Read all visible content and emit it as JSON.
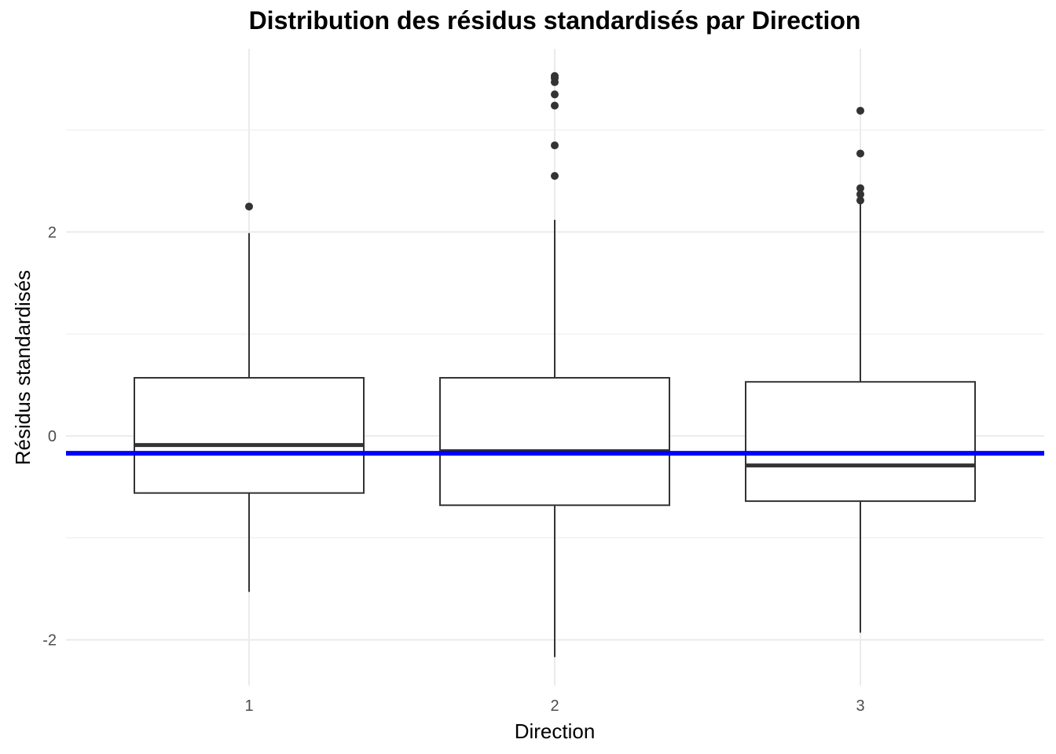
{
  "chart_data": {
    "type": "boxplot",
    "title": "Distribution des résidus standardisés par Direction",
    "xlabel": "Direction",
    "ylabel": "Résidus standardisés",
    "categories": [
      "1",
      "2",
      "3"
    ],
    "yticks": [
      -2,
      0,
      2
    ],
    "ytick_labels": [
      "-2",
      "0",
      "2"
    ],
    "ylim": [
      -2.4,
      3.8
    ],
    "grid": true,
    "reference_line": {
      "y": -0.17,
      "color": "#0000FF"
    },
    "boxes": [
      {
        "category": "1",
        "whisker_low": -1.53,
        "q1": -0.56,
        "median": -0.09,
        "q3": 0.57,
        "whisker_high": 1.99,
        "outliers": [
          2.25
        ]
      },
      {
        "category": "2",
        "whisker_low": -2.17,
        "q1": -0.68,
        "median": -0.15,
        "q3": 0.57,
        "whisker_high": 2.12,
        "outliers": [
          2.55,
          2.85,
          3.24,
          3.35,
          3.47,
          3.51,
          3.53
        ]
      },
      {
        "category": "3",
        "whisker_low": -1.93,
        "q1": -0.64,
        "median": -0.29,
        "q3": 0.53,
        "whisker_high": 2.29,
        "outliers": [
          2.31,
          2.37,
          2.43,
          2.77,
          3.19
        ]
      }
    ],
    "colors": {
      "box": "#333333",
      "grid": "#ebebeb",
      "reference": "#0000FF"
    }
  }
}
